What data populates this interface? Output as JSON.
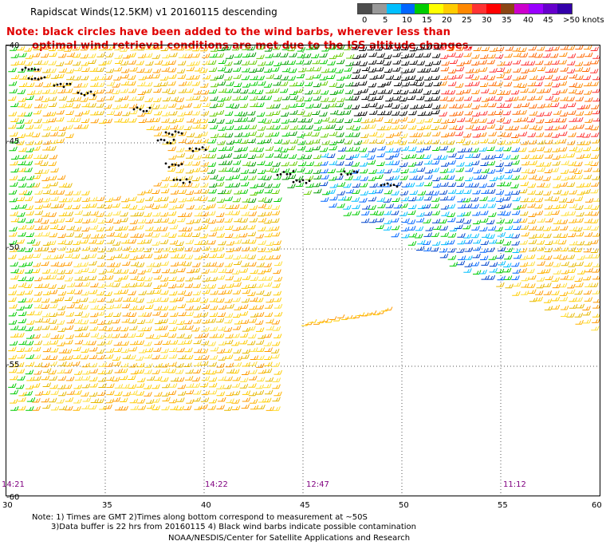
{
  "header": {
    "title": "Rapidscat Winds(12.5KM) v1 20160115 descending",
    "note_line1": "Note: black circles have been added to the wind barbs, wherever less than",
    "note_line2": "optimal wind retrieval conditions are met due to the ISS altitude changes."
  },
  "colorbar": {
    "colors": [
      "#4d4d4d",
      "#999999",
      "#00bfff",
      "#0066ff",
      "#00cc00",
      "#ffff00",
      "#ffcc00",
      "#ff8800",
      "#ff3333",
      "#ff0000",
      "#8b4513",
      "#cc00cc",
      "#9900ff",
      "#6600cc",
      "#3300aa"
    ],
    "labels": [
      "0",
      "5",
      "10",
      "15",
      "20",
      "25",
      "30",
      "35",
      "40",
      "45",
      ">50 knots"
    ]
  },
  "axes": {
    "x_ticks": [
      "30",
      "35",
      "40",
      "45",
      "50",
      "55",
      "60"
    ],
    "y_ticks": [
      "-40",
      "-45",
      "-50",
      "-55",
      "-60"
    ]
  },
  "times": [
    "14:21",
    "14:22",
    "12:47",
    "11:12"
  ],
  "footer": {
    "line1": "Note: 1) Times are GMT 2)Times along bottom correspond to measurement at ~50S",
    "line2": "3)Data buffer is 22 hrs from 20160115 4) Black wind barbs indicate possible contamination",
    "line3": "NOAA/NESDIS/Center for Satellite Applications and Research"
  }
}
